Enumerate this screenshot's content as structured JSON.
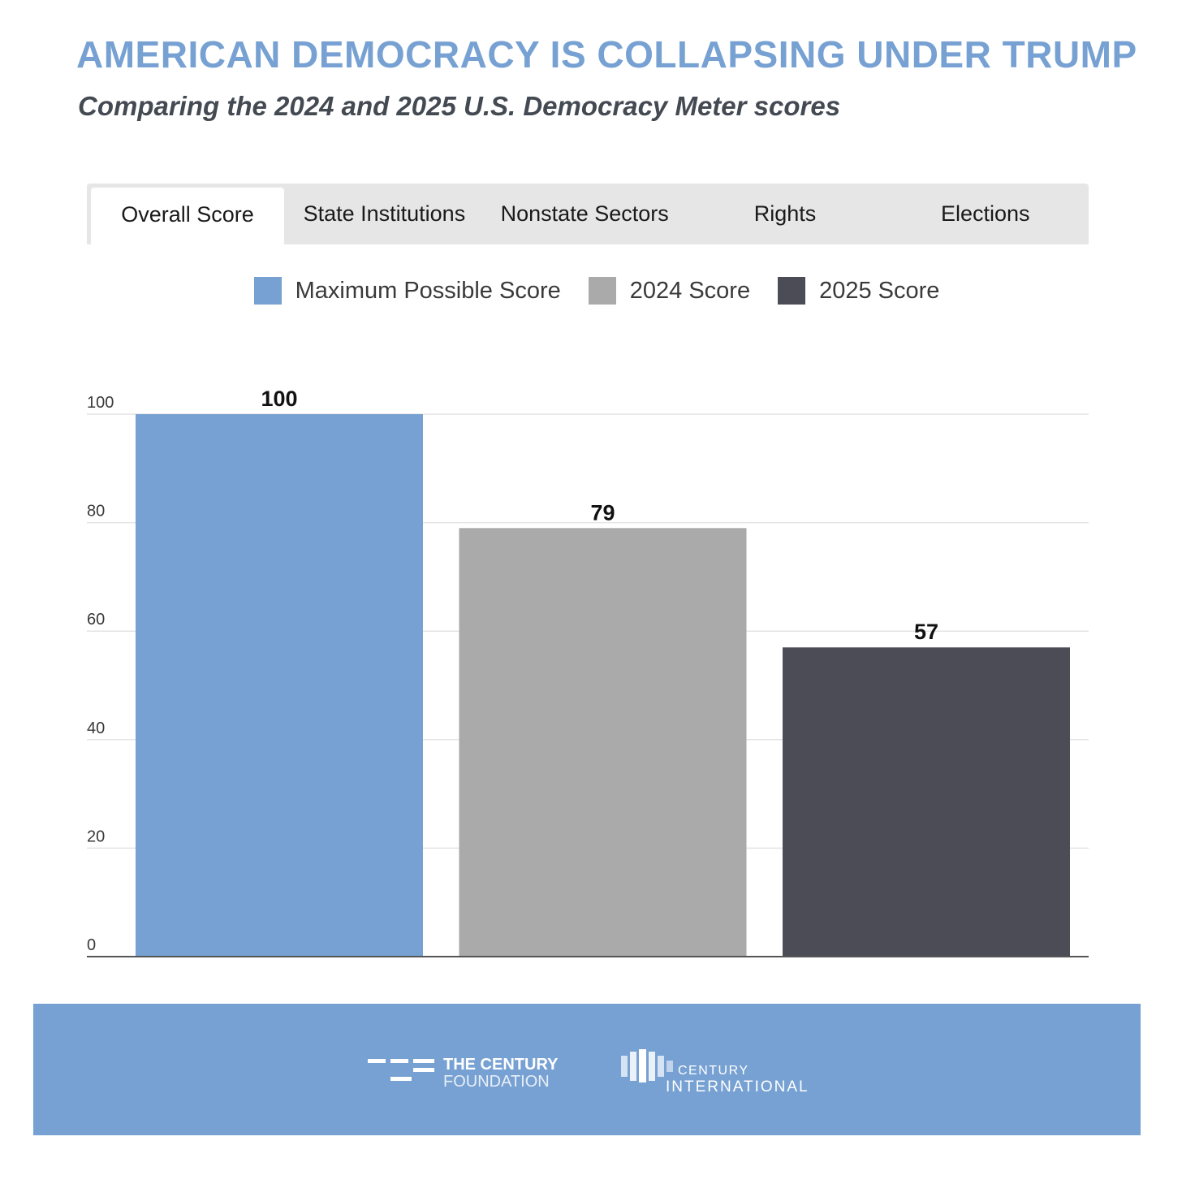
{
  "header": {
    "title": "AMERICAN DEMOCRACY IS COLLAPSING UNDER TRUMP",
    "subtitle": "Comparing the 2024 and 2025 U.S. Democracy Meter scores"
  },
  "tabs": [
    {
      "label": "Overall Score",
      "active": true
    },
    {
      "label": "State Institutions",
      "active": false
    },
    {
      "label": "Nonstate Sectors",
      "active": false
    },
    {
      "label": "Rights",
      "active": false
    },
    {
      "label": "Elections",
      "active": false
    }
  ],
  "legend": [
    {
      "label": "Maximum Possible Score",
      "color": "#76a1d2"
    },
    {
      "label": "2024 Score",
      "color": "#aaaaaa"
    },
    {
      "label": "2025 Score",
      "color": "#4b4c56"
    }
  ],
  "chart_data": {
    "type": "bar",
    "title": "AMERICAN DEMOCRACY IS COLLAPSING UNDER TRUMP",
    "subtitle": "Comparing the 2024 and 2025 U.S. Democracy Meter scores",
    "categories": [
      "Maximum Possible Score",
      "2024 Score",
      "2025 Score"
    ],
    "values": [
      100,
      79,
      57
    ],
    "colors": [
      "#76a1d2",
      "#aaaaaa",
      "#4b4c56"
    ],
    "data_labels": [
      "100",
      "79",
      "57"
    ],
    "yticks": [
      0,
      20,
      40,
      60,
      80,
      100
    ],
    "ylim": [
      0,
      100
    ],
    "xlabel": "",
    "ylabel": "",
    "grid": true,
    "legend_position": "top-center"
  },
  "footer": {
    "background": "#76a1d2",
    "tcf_line1": "THE CENTURY",
    "tcf_line2": "FOUNDATION",
    "ci_line1": "CENTURY",
    "ci_line2": "INTERNATIONAL"
  }
}
